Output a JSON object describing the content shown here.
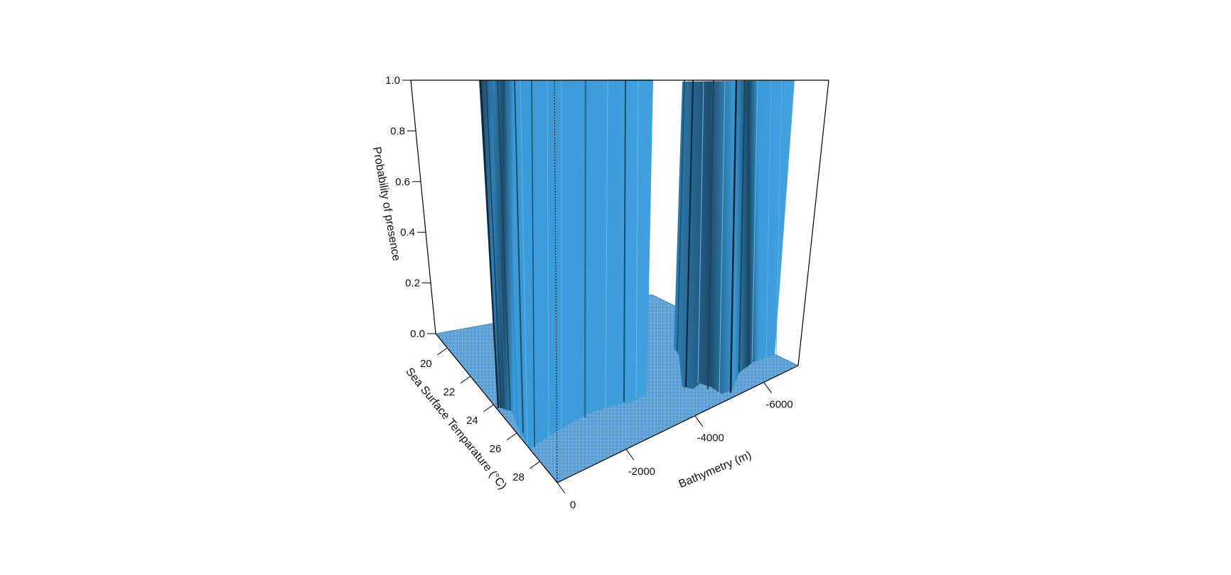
{
  "chart_data": {
    "type": "surface3d",
    "zlabel": "Probability of presence",
    "ylabel": "Sea Surface Temparature (°C)",
    "xlabel": "Bathymetry (m)",
    "z_ticks": [
      "0.0",
      "0.2",
      "0.4",
      "0.6",
      "0.8",
      "1.0"
    ],
    "sst_ticks": [
      "20",
      "22",
      "24",
      "26",
      "28"
    ],
    "bathy_ticks": [
      "0",
      "-2000",
      "-4000",
      "-6000"
    ],
    "zlim": [
      0,
      1
    ],
    "sst_range": [
      19,
      29.5
    ],
    "bathy_range": [
      0,
      -7000
    ],
    "colors": {
      "surface": "#3a9ad9",
      "surface_dark": "#1d4f6e",
      "floor": "#5a9ed2",
      "mesh": "#9cc6e8",
      "axis": "#000000"
    },
    "presence_bands": [
      {
        "bathy_from": -1000,
        "bathy_to": -2700,
        "probability": 1.0
      },
      {
        "bathy_from": -3600,
        "bathy_to": -5900,
        "probability": 1.0
      }
    ]
  }
}
